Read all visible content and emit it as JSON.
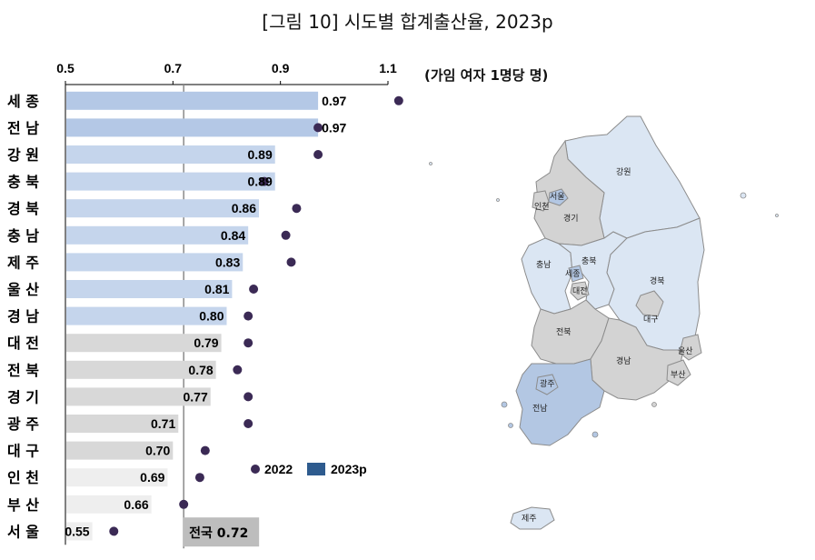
{
  "title": "[그림 10] 시도별 합계출산율, 2023p",
  "unit_label": "(가임 여자 1명당 명)",
  "chart_data": {
    "type": "bar",
    "orientation": "horizontal",
    "categories": [
      "세 종",
      "전 남",
      "강 원",
      "충 북",
      "경 북",
      "충 남",
      "제 주",
      "울 산",
      "경 남",
      "대 전",
      "전 북",
      "경 기",
      "광 주",
      "대 구",
      "인 천",
      "부 산",
      "서 울"
    ],
    "series": [
      {
        "name": "2023p",
        "values": [
          0.97,
          0.97,
          0.89,
          0.89,
          0.86,
          0.84,
          0.83,
          0.81,
          0.8,
          0.79,
          0.78,
          0.77,
          0.71,
          0.7,
          0.69,
          0.66,
          0.55
        ]
      },
      {
        "name": "2022",
        "values": [
          1.12,
          0.97,
          0.97,
          0.87,
          0.93,
          0.91,
          0.92,
          0.85,
          0.84,
          0.84,
          0.82,
          0.84,
          0.84,
          0.76,
          0.75,
          0.72,
          0.59
        ]
      }
    ],
    "data_labels": [
      "0.97",
      "0.97",
      "0.89",
      "0.89",
      "0.86",
      "0.84",
      "0.83",
      "0.81",
      "0.80",
      "0.79",
      "0.78",
      "0.77",
      "0.71",
      "0.70",
      "0.69",
      "0.66",
      "0.55"
    ],
    "x_ticks": [
      "0.5",
      "0.7",
      "0.9",
      "1.1"
    ],
    "xlim": [
      0.5,
      1.1
    ],
    "reference_line": {
      "label": "전국 0.72",
      "value": 0.72
    },
    "legend": [
      "2022",
      "2023p"
    ],
    "legend_position": "bottom-right",
    "colors": {
      "above_national": "#c5d5ec",
      "above_national_top": "#b4c8e6",
      "mid": "#d8d8d8",
      "below_national": "#eeeeee",
      "dot_2022": "#3b2a55",
      "legend_2023p": "#2e5b8e",
      "reference_box": "#bdbdbd"
    }
  },
  "map": {
    "regions": [
      "강원",
      "서울",
      "인천",
      "경기",
      "충남",
      "충북",
      "세종",
      "대전",
      "경북",
      "대구",
      "전북",
      "경남",
      "울산",
      "부산",
      "광주",
      "전남",
      "제주"
    ],
    "colors": {
      "blue": "#dbe6f3",
      "gray": "#d3d3d3",
      "dark_blue": "#b3c7e3",
      "outline": "#8c8c8c"
    }
  }
}
